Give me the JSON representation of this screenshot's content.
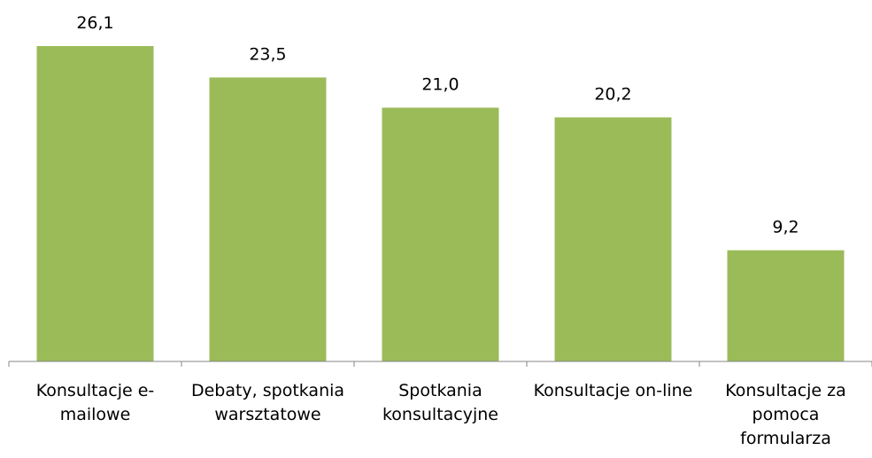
{
  "chart_data": {
    "type": "bar",
    "categories": [
      "Konsultacje e-mailowe",
      "Debaty, spotkania warsztatowe",
      "Spotkania konsultacyjne",
      "Konsultacje on-line",
      "Konsultacje za pomoca formularza"
    ],
    "values": [
      26.1,
      23.5,
      21.0,
      20.2,
      9.2
    ],
    "value_labels": [
      "26,1",
      "23,5",
      "21,0",
      "20,2",
      "9,2"
    ],
    "color": "#9bbb59",
    "ylim": [
      0,
      30
    ]
  }
}
